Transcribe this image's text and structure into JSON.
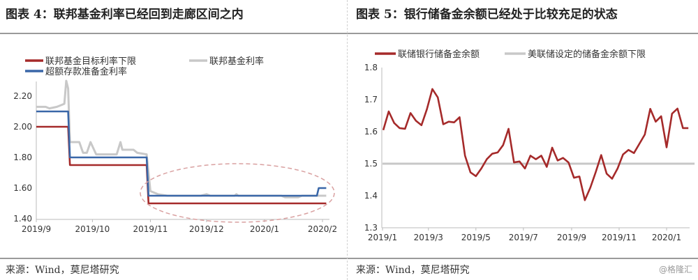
{
  "left": {
    "title": "图表 4：联邦基金利率已经回到走廊区间之内",
    "source": "来源：Wind，莫尼塔研究"
  },
  "right": {
    "title": "图表 5：银行储备金余额已经处于比较充足的状态",
    "source": "来源：Wind，莫尼塔研究"
  },
  "watermark": "@格隆汇",
  "chart_data": [
    {
      "type": "line",
      "step": true,
      "xlim": [
        "2019-09-01",
        "2020-02-01"
      ],
      "ylim": [
        1.4,
        2.3
      ],
      "yticks": [
        "1.40",
        "1.60",
        "1.80",
        "2.00",
        "2.20"
      ],
      "xticks": [
        {
          "date": "2019-09-01",
          "label": "2019/9"
        },
        {
          "date": "2019-10-01",
          "label": "2019/10"
        },
        {
          "date": "2019-11-01",
          "label": "2019/11"
        },
        {
          "date": "2019-12-01",
          "label": "2019/12"
        },
        {
          "date": "2020-01-01",
          "label": "2020/1"
        },
        {
          "date": "2020-02-01",
          "label": "2020/2"
        }
      ],
      "legend_placement": "top",
      "annotation": "dashed ellipse highlighting Nov 2019 – Feb 2020",
      "series": [
        {
          "name": "联邦基金目标利率下限",
          "color": "#a52a2a",
          "points": [
            [
              "2019-09-01",
              2.0
            ],
            [
              "2019-09-18",
              2.0
            ],
            [
              "2019-09-19",
              1.75
            ],
            [
              "2019-10-30",
              1.75
            ],
            [
              "2019-10-31",
              1.5
            ],
            [
              "2020-02-03",
              1.5
            ]
          ]
        },
        {
          "name": "联邦基金利率",
          "color": "#c8c8c8",
          "points": [
            [
              "2019-09-01",
              2.13
            ],
            [
              "2019-09-06",
              2.13
            ],
            [
              "2019-09-08",
              2.12
            ],
            [
              "2019-09-12",
              2.13
            ],
            [
              "2019-09-14",
              2.14
            ],
            [
              "2019-09-16",
              2.15
            ],
            [
              "2019-09-17",
              2.3
            ],
            [
              "2019-09-18",
              2.25
            ],
            [
              "2019-09-19",
              1.9
            ],
            [
              "2019-09-24",
              1.9
            ],
            [
              "2019-09-26",
              1.83
            ],
            [
              "2019-09-28",
              1.83
            ],
            [
              "2019-09-30",
              1.9
            ],
            [
              "2019-10-03",
              1.82
            ],
            [
              "2019-10-14",
              1.82
            ],
            [
              "2019-10-16",
              1.9
            ],
            [
              "2019-10-17",
              1.85
            ],
            [
              "2019-10-23",
              1.85
            ],
            [
              "2019-10-25",
              1.83
            ],
            [
              "2019-10-30",
              1.82
            ],
            [
              "2019-11-01",
              1.58
            ],
            [
              "2019-11-05",
              1.56
            ],
            [
              "2019-11-10",
              1.55
            ],
            [
              "2019-11-28",
              1.55
            ],
            [
              "2019-12-01",
              1.56
            ],
            [
              "2019-12-03",
              1.55
            ],
            [
              "2019-12-16",
              1.55
            ],
            [
              "2019-12-17",
              1.56
            ],
            [
              "2019-12-18",
              1.55
            ],
            [
              "2020-01-10",
              1.55
            ],
            [
              "2020-01-12",
              1.54
            ],
            [
              "2020-01-19",
              1.54
            ],
            [
              "2020-01-21",
              1.55
            ],
            [
              "2020-02-03",
              1.55
            ]
          ]
        },
        {
          "name": "超额存款准备金利率",
          "color": "#3a67a8",
          "points": [
            [
              "2019-09-01",
              2.1
            ],
            [
              "2019-09-18",
              2.1
            ],
            [
              "2019-09-19",
              1.8
            ],
            [
              "2019-10-30",
              1.8
            ],
            [
              "2019-10-31",
              1.55
            ],
            [
              "2020-01-29",
              1.55
            ],
            [
              "2020-01-30",
              1.6
            ],
            [
              "2020-02-03",
              1.6
            ]
          ]
        }
      ]
    },
    {
      "type": "line",
      "xlim": [
        "2019-01-01",
        "2020-02-06"
      ],
      "ylim": [
        1.3,
        1.8
      ],
      "yticks": [
        "1.3",
        "1.4",
        "1.5",
        "1.6",
        "1.7",
        "1.8"
      ],
      "xticks": [
        {
          "date": "2019-01-01",
          "label": "2019/1"
        },
        {
          "date": "2019-03-01",
          "label": "2019/3"
        },
        {
          "date": "2019-05-01",
          "label": "2019/5"
        },
        {
          "date": "2019-07-01",
          "label": "2019/7"
        },
        {
          "date": "2019-09-01",
          "label": "2019/9"
        },
        {
          "date": "2019-11-01",
          "label": "2019/11"
        },
        {
          "date": "2020-01-01",
          "label": "2020/1"
        }
      ],
      "legend_placement": "top",
      "series": [
        {
          "name": "联储银行储备金余额",
          "color": "#a52a2a",
          "x": [
            "2019-01-02",
            "2019-01-09",
            "2019-01-16",
            "2019-01-23",
            "2019-01-30",
            "2019-02-06",
            "2019-02-13",
            "2019-02-20",
            "2019-02-27",
            "2019-03-06",
            "2019-03-13",
            "2019-03-20",
            "2019-03-27",
            "2019-04-03",
            "2019-04-10",
            "2019-04-17",
            "2019-04-24",
            "2019-05-01",
            "2019-05-08",
            "2019-05-15",
            "2019-05-22",
            "2019-05-29",
            "2019-06-05",
            "2019-06-12",
            "2019-06-19",
            "2019-06-26",
            "2019-07-03",
            "2019-07-10",
            "2019-07-17",
            "2019-07-24",
            "2019-07-31",
            "2019-08-07",
            "2019-08-14",
            "2019-08-21",
            "2019-08-28",
            "2019-09-04",
            "2019-09-11",
            "2019-09-18",
            "2019-09-25",
            "2019-10-02",
            "2019-10-09",
            "2019-10-16",
            "2019-10-23",
            "2019-10-30",
            "2019-11-06",
            "2019-11-13",
            "2019-11-20",
            "2019-11-27",
            "2019-12-04",
            "2019-12-11",
            "2019-12-18",
            "2019-12-25",
            "2020-01-01",
            "2020-01-08",
            "2020-01-15",
            "2020-01-22",
            "2020-01-29"
          ],
          "values": [
            1.605,
            1.663,
            1.627,
            1.611,
            1.609,
            1.658,
            1.634,
            1.62,
            1.67,
            1.733,
            1.707,
            1.623,
            1.631,
            1.629,
            1.645,
            1.525,
            1.473,
            1.461,
            1.485,
            1.514,
            1.531,
            1.535,
            1.558,
            1.609,
            1.504,
            1.507,
            1.485,
            1.525,
            1.514,
            1.525,
            1.49,
            1.55,
            1.51,
            1.518,
            1.504,
            1.456,
            1.46,
            1.386,
            1.425,
            1.474,
            1.527,
            1.469,
            1.453,
            1.485,
            1.529,
            1.543,
            1.533,
            1.562,
            1.591,
            1.671,
            1.631,
            1.648,
            1.551,
            1.656,
            1.672,
            1.611,
            1.611
          ]
        },
        {
          "name": "美联储设定的储备金余额下限",
          "color": "#c8c8c8",
          "x": [
            "2019-01-01",
            "2020-02-06"
          ],
          "values": [
            1.5,
            1.5
          ]
        }
      ]
    }
  ]
}
